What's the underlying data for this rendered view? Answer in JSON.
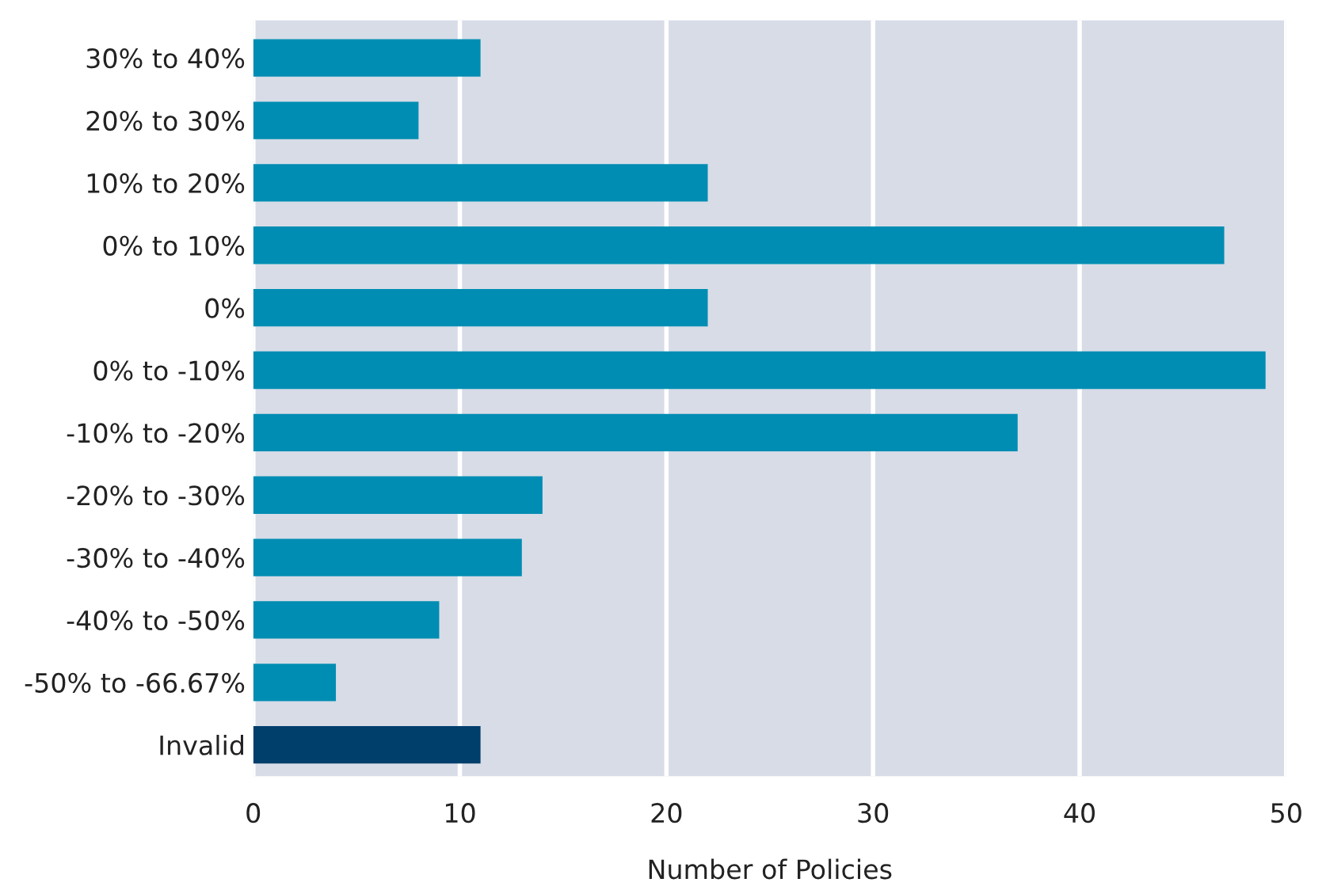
{
  "chart_data": {
    "type": "bar",
    "orientation": "horizontal",
    "xlabel": "Number of Policies",
    "categories": [
      "30% to 40%",
      "20% to 30%",
      "10% to 20%",
      "0% to 10%",
      "0%",
      "0% to -10%",
      "-10% to -20%",
      "-20% to -30%",
      "-30% to -40%",
      "-40% to -50%",
      "-50% to -66.67%",
      "Invalid"
    ],
    "values": [
      11,
      8,
      22,
      47,
      22,
      49,
      37,
      14,
      13,
      9,
      4,
      11
    ],
    "colors": [
      "#008db3",
      "#008db3",
      "#008db3",
      "#008db3",
      "#008db3",
      "#008db3",
      "#008db3",
      "#008db3",
      "#008db3",
      "#008db3",
      "#008db3",
      "#003e6b"
    ],
    "xlim": [
      0,
      50
    ],
    "xticks": [
      0,
      10,
      20,
      30,
      40,
      50
    ],
    "grid": "x",
    "legend": false
  }
}
